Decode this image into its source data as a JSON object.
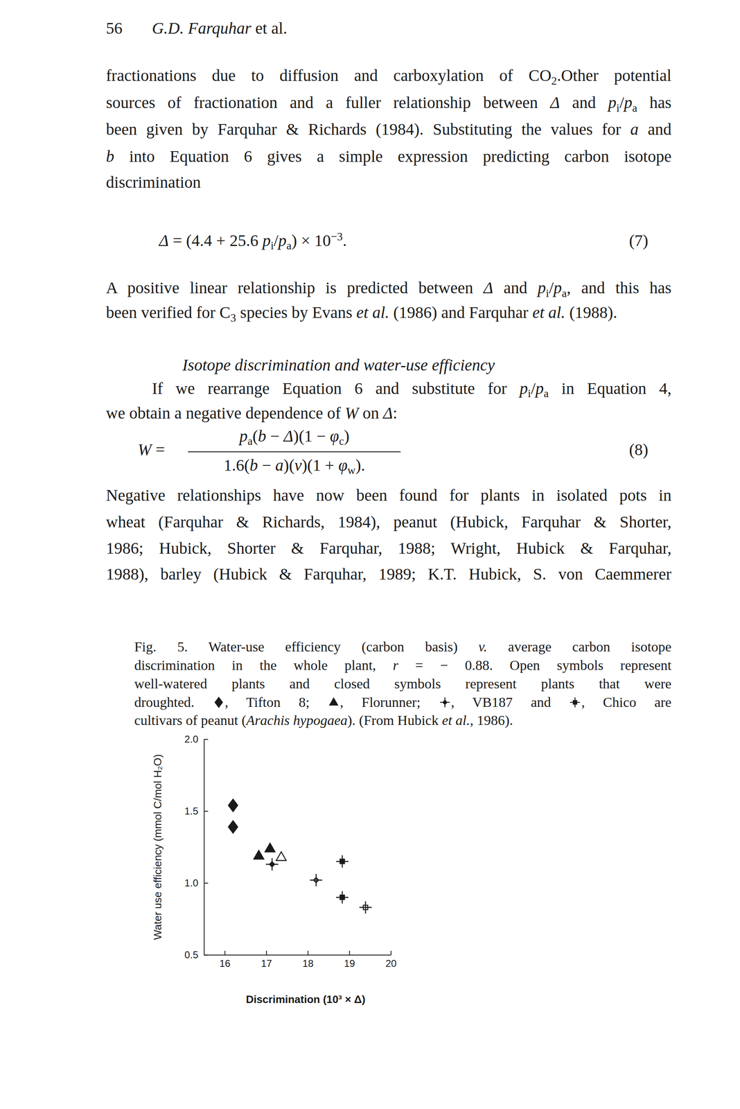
{
  "page": {
    "header": {
      "number": "56",
      "running_head": [
        {
          "text": "G.D. Farquhar",
          "style": "italic"
        },
        {
          "text": " et al."
        }
      ]
    },
    "blocks": [
      {
        "lines": [
          [
            {
              "text": "fractionations due to diffusion and carboxylation of CO"
            },
            {
              "text": "2",
              "style": "sub"
            },
            {
              "text": ".Other potential"
            }
          ],
          [
            {
              "text": "sources of fractionation and a fuller relationship between "
            },
            {
              "text": "Δ",
              "style": "italic"
            },
            {
              "text": " and "
            },
            {
              "text": "p",
              "style": "italic"
            },
            {
              "text": "i",
              "style": "sub"
            },
            {
              "text": "/"
            },
            {
              "text": "p",
              "style": "italic"
            },
            {
              "text": "a",
              "style": "sub"
            },
            {
              "text": " has"
            }
          ],
          [
            {
              "text": "been given by Farquhar & Richards (1984). Substituting the values for "
            },
            {
              "text": "a",
              "style": "italic"
            },
            {
              "text": " and"
            }
          ],
          [
            {
              "text": "b",
              "style": "italic"
            },
            {
              "text": " into Equation 6 gives a simple expression predicting carbon isotope"
            }
          ],
          [
            {
              "text": "discrimination"
            }
          ]
        ]
      },
      {
        "runs": [
          {
            "text": "Δ",
            "style": "italic"
          },
          {
            "text": " = (4.4 + 25.6 "
          },
          {
            "text": "p",
            "style": "italic"
          },
          {
            "text": "i",
            "style": "sub"
          },
          {
            "text": "/"
          },
          {
            "text": "p",
            "style": "italic"
          },
          {
            "text": "a",
            "style": "sub"
          },
          {
            "text": ") × 10"
          },
          {
            "text": "−3",
            "style": "sup"
          },
          {
            "text": "."
          }
        ],
        "number": "(7)"
      },
      {
        "lines": [
          [
            {
              "text": "A positive linear relationship is predicted between "
            },
            {
              "text": "Δ",
              "style": "italic"
            },
            {
              "text": " and "
            },
            {
              "text": "p",
              "style": "italic"
            },
            {
              "text": "i",
              "style": "sub"
            },
            {
              "text": "/"
            },
            {
              "text": "p",
              "style": "italic"
            },
            {
              "text": "a",
              "style": "sub"
            },
            {
              "text": ", and this has"
            }
          ],
          [
            {
              "text": "been verified for C"
            },
            {
              "text": "3",
              "style": "sub"
            },
            {
              "text": " species by Evans "
            },
            {
              "text": "et al.",
              "style": "italic"
            },
            {
              "text": " (1986) and Farquhar "
            },
            {
              "text": "et al.",
              "style": "italic"
            },
            {
              "text": " (1988)."
            }
          ]
        ]
      },
      {
        "runs": [
          {
            "text": "Isotope discrimination and water-use efficiency",
            "style": "italic"
          }
        ]
      },
      {
        "lines": [
          [
            {
              "text": "If we rearrange Equation 6 and substitute for "
            },
            {
              "text": "p",
              "style": "italic"
            },
            {
              "text": "i",
              "style": "sub"
            },
            {
              "text": "/"
            },
            {
              "text": "p",
              "style": "italic"
            },
            {
              "text": "a",
              "style": "sub"
            },
            {
              "text": " in Equation 4,"
            }
          ],
          [
            {
              "text": "we obtain a negative dependence of "
            },
            {
              "text": "W",
              "style": "italic"
            },
            {
              "text": " on "
            },
            {
              "text": "Δ",
              "style": "italic"
            },
            {
              "text": ":"
            }
          ]
        ]
      },
      {
        "lhs": [
          {
            "text": "W",
            "style": "italic"
          },
          {
            "text": " ="
          }
        ],
        "numerator": [
          {
            "text": "p",
            "style": "italic"
          },
          {
            "text": "a",
            "style": "sub"
          },
          {
            "text": "("
          },
          {
            "text": "b",
            "style": "italic"
          },
          {
            "text": " − "
          },
          {
            "text": "Δ",
            "style": "italic"
          },
          {
            "text": ")(1 − "
          },
          {
            "text": "φ",
            "style": "italic"
          },
          {
            "text": "c",
            "style": "sub"
          },
          {
            "text": ")"
          }
        ],
        "denominator": [
          {
            "text": "1.6("
          },
          {
            "text": "b",
            "style": "italic"
          },
          {
            "text": " − "
          },
          {
            "text": "a",
            "style": "italic"
          },
          {
            "text": ")("
          },
          {
            "text": "v",
            "style": "italic"
          },
          {
            "text": ")(1 + "
          },
          {
            "text": "φ",
            "style": "italic"
          },
          {
            "text": "w",
            "style": "sub"
          },
          {
            "text": ")."
          }
        ],
        "number": "(8)"
      },
      {
        "lines": [
          [
            {
              "text": "Negative relationships have now been found for plants in isolated pots in"
            }
          ],
          [
            {
              "text": "wheat (Farquhar & Richards, 1984), peanut (Hubick, Farquhar & Shorter,"
            }
          ],
          [
            {
              "text": "1986; Hubick, Shorter & Farquhar, 1988; Wright, Hubick & Farquhar,"
            }
          ],
          [
            {
              "text": "1988), barley (Hubick & Farquhar, 1989; K.T. Hubick, S. von Caemmerer"
            }
          ]
        ]
      }
    ],
    "caption": {
      "lines": [
        [
          {
            "text": "Fig. 5. Water-use efficiency (carbon basis) "
          },
          {
            "text": "v.",
            "style": "italic"
          },
          {
            "text": " average carbon isotope"
          }
        ],
        [
          {
            "text": "discrimination in the whole plant, "
          },
          {
            "text": "r",
            "style": "italic"
          },
          {
            "text": " = − 0.88. Open symbols represent"
          }
        ],
        [
          {
            "text": "well-watered plants and closed symbols represent plants that were"
          }
        ],
        [
          {
            "text": "droughted. "
          },
          {
            "series_marker": 0
          },
          {
            "text": ", "
          },
          {
            "series_name": 0
          },
          {
            "text": "; "
          },
          {
            "series_marker": 1
          },
          {
            "text": ", "
          },
          {
            "series_name": 1
          },
          {
            "text": "; "
          },
          {
            "series_marker": 2
          },
          {
            "text": ", "
          },
          {
            "series_name": 2
          },
          {
            "text": " and "
          },
          {
            "series_marker": 3
          },
          {
            "text": ", "
          },
          {
            "series_name": 3
          },
          {
            "text": " are"
          }
        ],
        [
          {
            "text": "cultivars of peanut ("
          },
          {
            "text": "Arachis hypogaea",
            "style": "italic"
          },
          {
            "text": "). (From Hubick "
          },
          {
            "text": "et al.",
            "style": "italic"
          },
          {
            "text": ", 1986)."
          }
        ]
      ]
    }
  },
  "chart_data": {
    "type": "scatter",
    "x_label": "Discrimination (10³ × Δ)",
    "y_label": "Water use efficiency (mmol C/mol H₂O)",
    "xlim": [
      15.5,
      20
    ],
    "xticks": [
      16,
      17,
      18,
      19,
      20
    ],
    "ylim": [
      0.5,
      2.0
    ],
    "yticks": [
      0.5,
      {
        "value": 1,
        "label": "1.0"
      },
      1.5,
      {
        "value": 2,
        "label": "2.0"
      }
    ],
    "series": [
      {
        "name": "Tifton 8",
        "marker": "diamond",
        "x": [
          16.2,
          16.2
        ],
        "values": [
          1.54,
          1.39
        ],
        "watering": [
          "droughted",
          "droughted"
        ]
      },
      {
        "name": "Florunner",
        "marker": "triangle",
        "x": [
          16.82,
          17.09,
          17.36
        ],
        "values": [
          1.19,
          1.24,
          1.18
        ],
        "watering": [
          "droughted",
          "droughted",
          "well-watered"
        ]
      },
      {
        "name": "VB187",
        "marker": "star",
        "x": [
          17.14,
          18.2
        ],
        "values": [
          1.13,
          1.02
        ],
        "watering": [
          "droughted",
          "well-watered"
        ]
      },
      {
        "name": "Chico",
        "marker": "cross",
        "x": [
          18.83,
          18.83,
          19.39
        ],
        "values": [
          1.15,
          0.9,
          0.83
        ],
        "watering": [
          "droughted",
          "droughted",
          "well-watered"
        ]
      }
    ]
  }
}
